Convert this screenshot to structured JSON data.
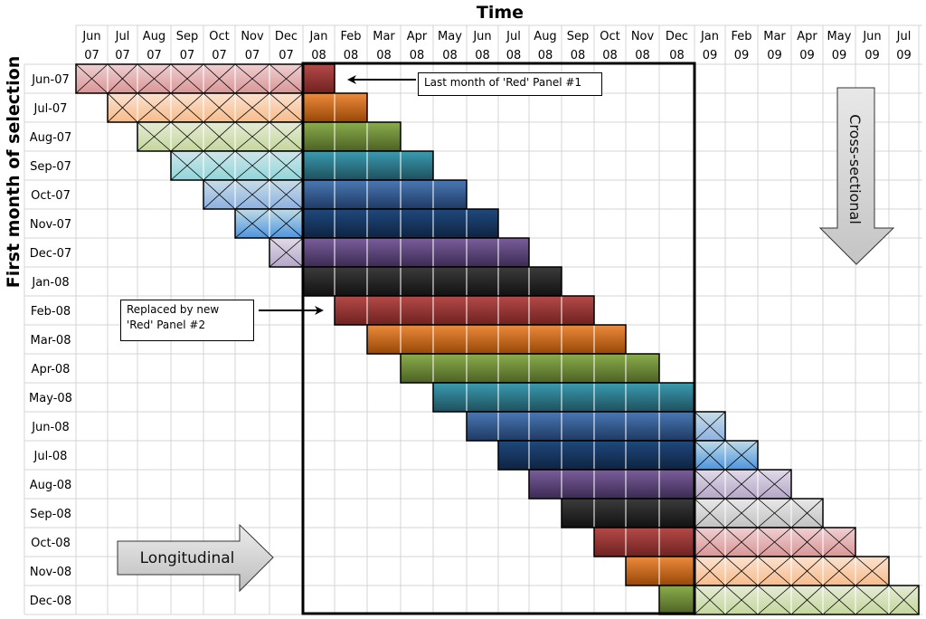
{
  "diagram": {
    "top_title": "Time",
    "side_title": "First month of selection",
    "columns": [
      [
        "Jun",
        "07"
      ],
      [
        "Jul",
        "07"
      ],
      [
        "Aug",
        "07"
      ],
      [
        "Sep",
        "07"
      ],
      [
        "Oct",
        "07"
      ],
      [
        "Nov",
        "07"
      ],
      [
        "Dec",
        "07"
      ],
      [
        "Jan",
        "08"
      ],
      [
        "Feb",
        "08"
      ],
      [
        "Mar",
        "08"
      ],
      [
        "Apr",
        "08"
      ],
      [
        "May",
        "08"
      ],
      [
        "Jun",
        "08"
      ],
      [
        "Jul",
        "08"
      ],
      [
        "Aug",
        "08"
      ],
      [
        "Sep",
        "08"
      ],
      [
        "Oct",
        "08"
      ],
      [
        "Nov",
        "08"
      ],
      [
        "Dec",
        "08"
      ],
      [
        "Jan",
        "09"
      ],
      [
        "Feb",
        "09"
      ],
      [
        "Mar",
        "09"
      ],
      [
        "Apr",
        "09"
      ],
      [
        "May",
        "09"
      ],
      [
        "Jun",
        "09"
      ],
      [
        "Jul",
        "09"
      ]
    ],
    "rows": [
      "Jun-07",
      "Jul-07",
      "Aug-07",
      "Sep-07",
      "Oct-07",
      "Nov-07",
      "Dec-07",
      "Jan-08",
      "Feb-08",
      "Mar-08",
      "Apr-08",
      "May-08",
      "Jun-08",
      "Jul-08",
      "Aug-08",
      "Sep-08",
      "Oct-08",
      "Nov-08",
      "Dec-08"
    ],
    "panel_length_months": 8,
    "highlight_window": {
      "from": "Jan 08",
      "to": "Dec 08"
    },
    "panel_colors": [
      {
        "name": "red",
        "dark": [
          "#b54a48",
          "#6e2221"
        ],
        "light": [
          "#efd0d3",
          "#d99595"
        ]
      },
      {
        "name": "orange",
        "dark": [
          "#ec8b3c",
          "#974708"
        ],
        "light": [
          "#fae2d0",
          "#f7bb8a"
        ]
      },
      {
        "name": "green",
        "dark": [
          "#8bad4c",
          "#4c6124"
        ],
        "light": [
          "#e5ecd6",
          "#c4d69b"
        ]
      },
      {
        "name": "teal",
        "dark": [
          "#3a9cb0",
          "#1e4f5d"
        ],
        "light": [
          "#cfe6ea",
          "#8fd6da"
        ]
      },
      {
        "name": "blue",
        "dark": [
          "#4a78b4",
          "#1f3a63"
        ],
        "light": [
          "#c8dde8",
          "#8cb0e0"
        ]
      },
      {
        "name": "navy",
        "dark": [
          "#1f497d",
          "#0f2341"
        ],
        "light": [
          "#bfdbe6",
          "#4d94df"
        ]
      },
      {
        "name": "purple",
        "dark": [
          "#7a5e9a",
          "#3b2b53"
        ],
        "light": [
          "#e0dbe8",
          "#b4a6c8"
        ]
      },
      {
        "name": "black",
        "dark": [
          "#3c3c3c",
          "#111111"
        ],
        "light": [
          "#e8e8e8",
          "#c2c2c2"
        ]
      }
    ],
    "annotations": [
      {
        "text_lines": [
          "Last month  of  'Red' Panel #1"
        ]
      },
      {
        "text_lines": [
          "Replaced by new",
          "'Red' Panel #2"
        ]
      }
    ],
    "arrows": {
      "longitudinal": "Longitudinal",
      "cross_sectional": "Cross-sectional"
    }
  }
}
